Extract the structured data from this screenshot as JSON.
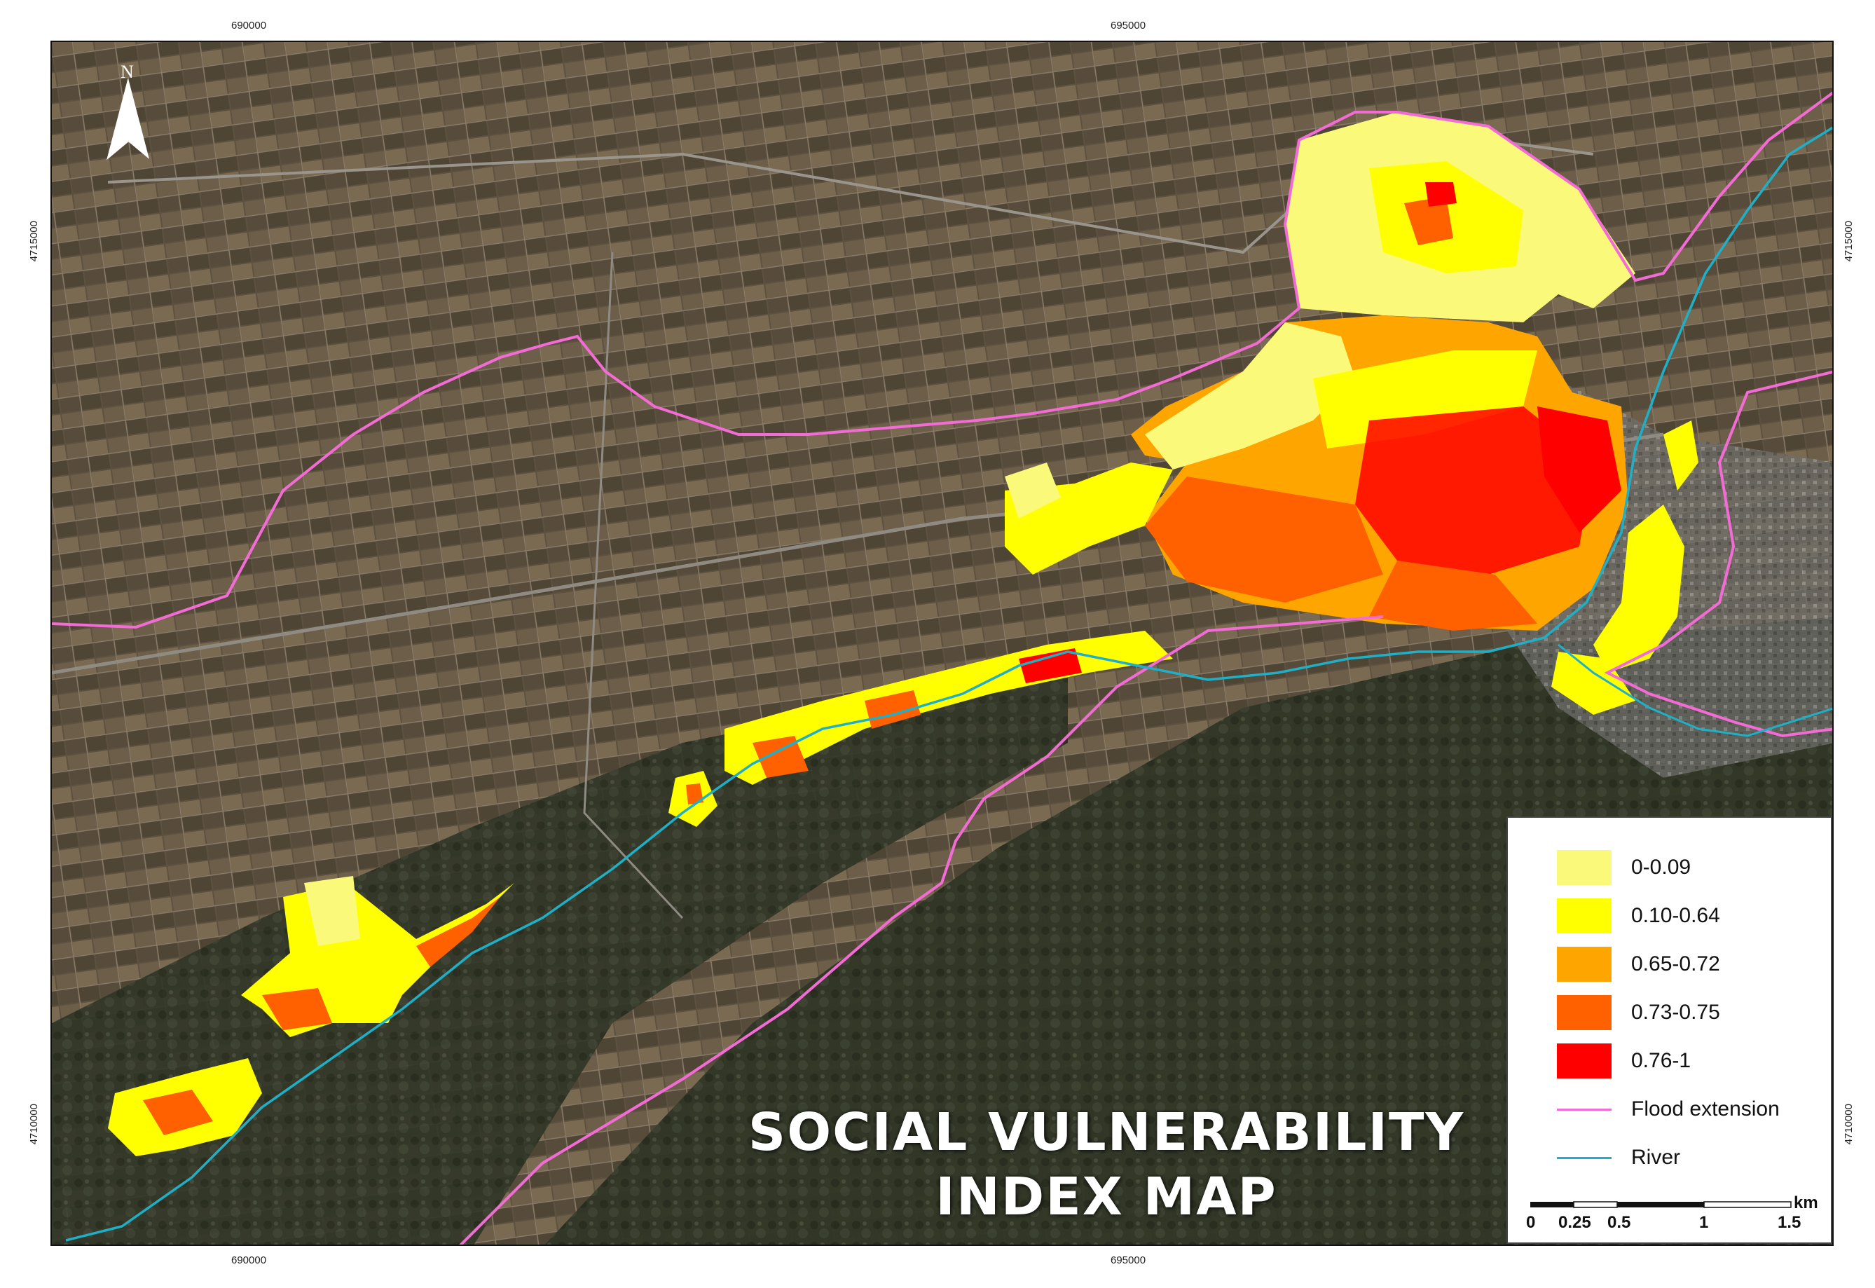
{
  "map": {
    "title_line1": "SOCIAL VULNERABILITY",
    "title_line2": "INDEX MAP",
    "north_label": "N",
    "coordinates": {
      "top": [
        "690000",
        "695000"
      ],
      "bottom": [
        "690000",
        "695000"
      ],
      "left": [
        "4715000",
        "4710000"
      ],
      "right": [
        "4715000",
        "4710000"
      ]
    }
  },
  "legend": {
    "classes": [
      {
        "label": "0-0.09",
        "color": "#fbf97a"
      },
      {
        "label": "0.10-0.64",
        "color": "#ffff00"
      },
      {
        "label": "0.65-0.72",
        "color": "#ffa500"
      },
      {
        "label": "0.73-0.75",
        "color": "#ff6000"
      },
      {
        "label": "0.76-1",
        "color": "#ff0000"
      }
    ],
    "lines": [
      {
        "label": "Flood extension",
        "color": "#f36bd4"
      },
      {
        "label": "River",
        "color": "#1fb0c8"
      }
    ],
    "scale": {
      "unit": "km",
      "ticks": [
        "0",
        "0.25",
        "0.5",
        "1",
        "1.5"
      ]
    }
  }
}
